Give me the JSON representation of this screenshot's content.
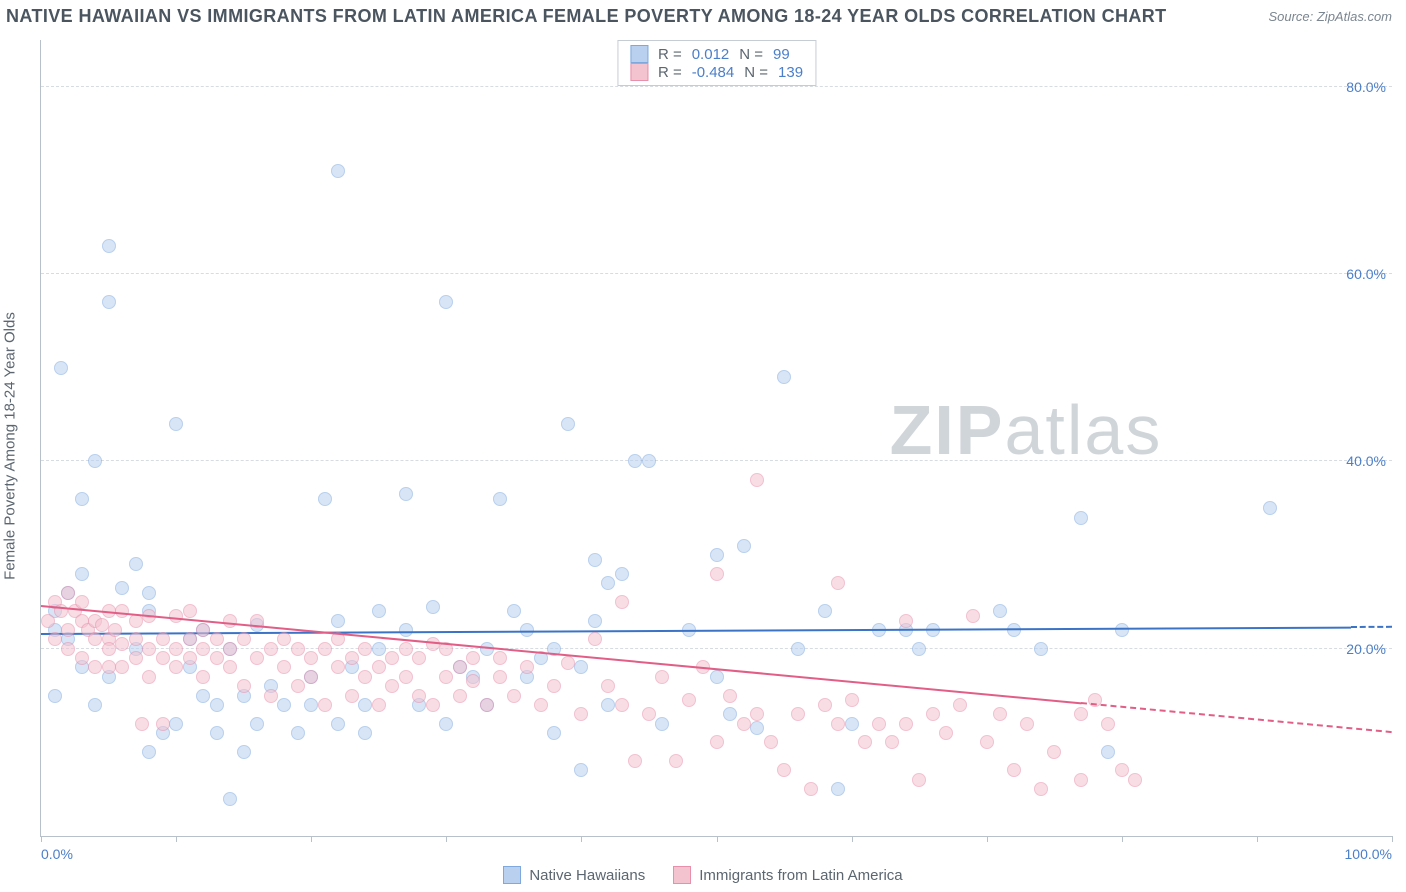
{
  "title": "NATIVE HAWAIIAN VS IMMIGRANTS FROM LATIN AMERICA FEMALE POVERTY AMONG 18-24 YEAR OLDS CORRELATION CHART",
  "source_label": "Source: ZipAtlas.com",
  "ylabel": "Female Poverty Among 18-24 Year Olds",
  "watermark": {
    "bold": "ZIP",
    "light": "atlas"
  },
  "axes": {
    "xlim": [
      0,
      100
    ],
    "xticks": [
      0,
      10,
      20,
      30,
      40,
      50,
      60,
      70,
      80,
      90,
      100
    ],
    "xlabels": {
      "0": "0.0%",
      "100": "100.0%"
    },
    "ylim": [
      0,
      85
    ],
    "ygrid": [
      20,
      40,
      60,
      80
    ],
    "ylabels": {
      "20": "20.0%",
      "40": "40.0%",
      "60": "60.0%",
      "80": "80.0%"
    },
    "grid_color": "#d6dce2",
    "axis_color": "#b8c0c9",
    "tick_label_color": "#4b7fc9"
  },
  "series": [
    {
      "id": "native_hawaiians",
      "label": "Native Hawaiians",
      "R": "0.012",
      "N": "99",
      "marker_fill": "#b9d0ef",
      "marker_stroke": "#7fa9de",
      "marker_fill_opacity": 0.55,
      "marker_size": 14,
      "line_color": "#3b74c6",
      "trend": {
        "y_at_x0": 21.5,
        "y_at_x100": 22.2,
        "solid_to_x": 97
      },
      "points": [
        [
          1,
          15
        ],
        [
          1,
          24
        ],
        [
          1,
          22
        ],
        [
          1.5,
          50
        ],
        [
          2,
          21
        ],
        [
          2,
          26
        ],
        [
          3,
          18
        ],
        [
          3,
          28
        ],
        [
          3,
          36
        ],
        [
          4,
          14
        ],
        [
          4,
          40
        ],
        [
          5,
          17
        ],
        [
          5,
          63
        ],
        [
          5,
          57
        ],
        [
          6,
          26.5
        ],
        [
          7,
          20
        ],
        [
          7,
          29
        ],
        [
          8,
          9
        ],
        [
          8,
          26
        ],
        [
          8,
          24
        ],
        [
          9,
          11
        ],
        [
          10,
          12
        ],
        [
          10,
          44
        ],
        [
          11,
          21
        ],
        [
          11,
          18
        ],
        [
          12,
          15
        ],
        [
          12,
          22
        ],
        [
          13,
          14
        ],
        [
          13,
          11
        ],
        [
          14,
          4
        ],
        [
          14,
          20
        ],
        [
          15,
          9
        ],
        [
          15,
          15
        ],
        [
          16,
          12
        ],
        [
          16,
          22.5
        ],
        [
          17,
          16
        ],
        [
          18,
          14
        ],
        [
          19,
          11
        ],
        [
          20,
          14
        ],
        [
          20,
          17
        ],
        [
          21,
          36
        ],
        [
          22,
          71
        ],
        [
          22,
          23
        ],
        [
          22,
          12
        ],
        [
          23,
          18
        ],
        [
          24,
          11
        ],
        [
          24,
          14
        ],
        [
          25,
          20
        ],
        [
          25,
          24
        ],
        [
          27,
          22
        ],
        [
          27,
          36.5
        ],
        [
          28,
          14
        ],
        [
          29,
          24.5
        ],
        [
          30,
          12
        ],
        [
          30,
          57
        ],
        [
          31,
          18
        ],
        [
          32,
          17
        ],
        [
          33,
          20
        ],
        [
          33,
          14
        ],
        [
          34,
          36
        ],
        [
          35,
          24
        ],
        [
          36,
          22
        ],
        [
          36,
          17
        ],
        [
          37,
          19
        ],
        [
          38,
          11
        ],
        [
          38,
          20
        ],
        [
          39,
          44
        ],
        [
          40,
          7
        ],
        [
          40,
          18
        ],
        [
          41,
          23
        ],
        [
          41,
          29.5
        ],
        [
          42,
          14
        ],
        [
          42,
          27
        ],
        [
          43,
          28
        ],
        [
          44,
          40
        ],
        [
          45,
          40
        ],
        [
          46,
          12
        ],
        [
          48,
          22
        ],
        [
          50,
          17
        ],
        [
          50,
          30
        ],
        [
          51,
          13
        ],
        [
          52,
          31
        ],
        [
          53,
          11.5
        ],
        [
          55,
          49
        ],
        [
          56,
          20
        ],
        [
          58,
          24
        ],
        [
          59,
          5
        ],
        [
          60,
          12
        ],
        [
          62,
          22
        ],
        [
          64,
          22
        ],
        [
          65,
          20
        ],
        [
          66,
          22
        ],
        [
          71,
          24
        ],
        [
          72,
          22
        ],
        [
          74,
          20
        ],
        [
          77,
          34
        ],
        [
          79,
          9
        ],
        [
          80,
          22
        ],
        [
          91,
          35
        ]
      ]
    },
    {
      "id": "latin_america",
      "label": "Immigrants from Latin America",
      "R": "-0.484",
      "N": "139",
      "marker_fill": "#f3c3d0",
      "marker_stroke": "#e78fab",
      "marker_fill_opacity": 0.55,
      "marker_size": 14,
      "line_color": "#e15e86",
      "trend": {
        "y_at_x0": 24.5,
        "y_at_x100": 11.0,
        "solid_to_x": 77
      },
      "points": [
        [
          0.5,
          23
        ],
        [
          1,
          21
        ],
        [
          1,
          25
        ],
        [
          1.5,
          24
        ],
        [
          2,
          22
        ],
        [
          2,
          20
        ],
        [
          2,
          26
        ],
        [
          2.5,
          24
        ],
        [
          3,
          19
        ],
        [
          3,
          23
        ],
        [
          3,
          25
        ],
        [
          3.5,
          22
        ],
        [
          4,
          21
        ],
        [
          4,
          18
        ],
        [
          4,
          23
        ],
        [
          4.5,
          22.5
        ],
        [
          5,
          21
        ],
        [
          5,
          18
        ],
        [
          5,
          20
        ],
        [
          5,
          24
        ],
        [
          5.5,
          22
        ],
        [
          6,
          20.5
        ],
        [
          6,
          18
        ],
        [
          6,
          24
        ],
        [
          7,
          21
        ],
        [
          7,
          19
        ],
        [
          7,
          23
        ],
        [
          7.5,
          12
        ],
        [
          8,
          20
        ],
        [
          8,
          23.5
        ],
        [
          8,
          17
        ],
        [
          9,
          19
        ],
        [
          9,
          21
        ],
        [
          9,
          12
        ],
        [
          10,
          20
        ],
        [
          10,
          23.5
        ],
        [
          10,
          18
        ],
        [
          11,
          21
        ],
        [
          11,
          19
        ],
        [
          11,
          24
        ],
        [
          12,
          20
        ],
        [
          12,
          17
        ],
        [
          12,
          22
        ],
        [
          13,
          19
        ],
        [
          13,
          21
        ],
        [
          14,
          18
        ],
        [
          14,
          20
        ],
        [
          14,
          23
        ],
        [
          15,
          16
        ],
        [
          15,
          21
        ],
        [
          16,
          19
        ],
        [
          16,
          23
        ],
        [
          17,
          15
        ],
        [
          17,
          20
        ],
        [
          18,
          18
        ],
        [
          18,
          21
        ],
        [
          19,
          16
        ],
        [
          19,
          20
        ],
        [
          20,
          19
        ],
        [
          20,
          17
        ],
        [
          21,
          20
        ],
        [
          21,
          14
        ],
        [
          22,
          18
        ],
        [
          22,
          21
        ],
        [
          23,
          15
        ],
        [
          23,
          19
        ],
        [
          24,
          17
        ],
        [
          24,
          20
        ],
        [
          25,
          14
        ],
        [
          25,
          18
        ],
        [
          26,
          19
        ],
        [
          26,
          16
        ],
        [
          27,
          20
        ],
        [
          27,
          17
        ],
        [
          28,
          15
        ],
        [
          28,
          19
        ],
        [
          29,
          20.5
        ],
        [
          29,
          14
        ],
        [
          30,
          17
        ],
        [
          30,
          20
        ],
        [
          31,
          15
        ],
        [
          31,
          18
        ],
        [
          32,
          16.5
        ],
        [
          32,
          19
        ],
        [
          33,
          14
        ],
        [
          34,
          17
        ],
        [
          34,
          19
        ],
        [
          35,
          15
        ],
        [
          36,
          18
        ],
        [
          37,
          14
        ],
        [
          38,
          16
        ],
        [
          39,
          18.5
        ],
        [
          40,
          13
        ],
        [
          41,
          21
        ],
        [
          42,
          16
        ],
        [
          43,
          14
        ],
        [
          43,
          25
        ],
        [
          44,
          8
        ],
        [
          45,
          13
        ],
        [
          46,
          17
        ],
        [
          47,
          8
        ],
        [
          48,
          14.5
        ],
        [
          49,
          18
        ],
        [
          50,
          28
        ],
        [
          50,
          10
        ],
        [
          51,
          15
        ],
        [
          52,
          12
        ],
        [
          53,
          13
        ],
        [
          53,
          38
        ],
        [
          54,
          10
        ],
        [
          55,
          7
        ],
        [
          56,
          13
        ],
        [
          57,
          5
        ],
        [
          58,
          14
        ],
        [
          59,
          12
        ],
        [
          59,
          27
        ],
        [
          60,
          14.5
        ],
        [
          61,
          10
        ],
        [
          62,
          12
        ],
        [
          63,
          10
        ],
        [
          64,
          12
        ],
        [
          64,
          23
        ],
        [
          65,
          6
        ],
        [
          66,
          13
        ],
        [
          67,
          11
        ],
        [
          68,
          14
        ],
        [
          69,
          23.5
        ],
        [
          70,
          10
        ],
        [
          71,
          13
        ],
        [
          72,
          7
        ],
        [
          73,
          12
        ],
        [
          74,
          5
        ],
        [
          75,
          9
        ],
        [
          77,
          6
        ],
        [
          77,
          13
        ],
        [
          78,
          14.5
        ],
        [
          79,
          12
        ],
        [
          80,
          7
        ],
        [
          81,
          6
        ]
      ]
    }
  ],
  "stats_box_labels": {
    "R": "R =",
    "N": "N ="
  },
  "colors": {
    "title_color": "#4a5560",
    "ylabel_color": "#5b6670",
    "source_color": "#7b8691",
    "watermark_color": "#d0d5da"
  }
}
